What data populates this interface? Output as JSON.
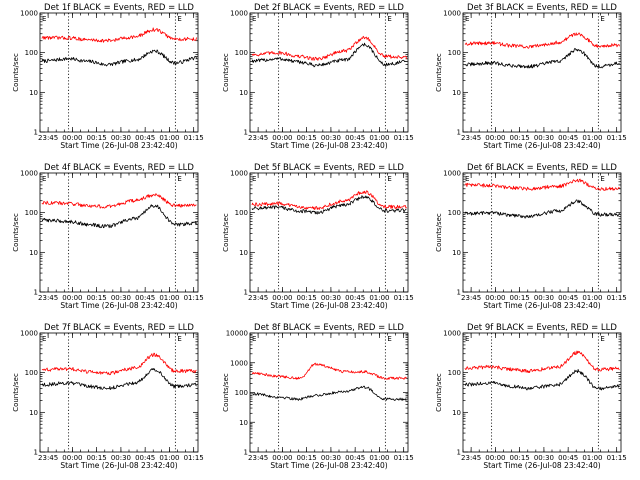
{
  "figure": {
    "title_suffix": " BLACK = Events, RED = LLD",
    "ylabel": "Counts/sec",
    "xlabel": "Start Time (26-Jul-08 23:42:40)",
    "xtick_labels": [
      "23:45",
      "00:00",
      "00:15",
      "00:30",
      "00:45",
      "01:00",
      "01:15"
    ],
    "marker": "E",
    "colors": {
      "events": "#000000",
      "lld": "#ff0000"
    }
  },
  "chart_data": [
    {
      "type": "line",
      "title_prefix": "Det 1f",
      "y_ticks": [
        "1",
        "10",
        "100",
        "1000"
      ],
      "ylim": [
        1,
        1000
      ],
      "xlabel": "Start Time (26-Jul-08 23:42:40)",
      "ylabel": "Counts/sec",
      "xlim_minutes": [
        -2.7,
        95
      ],
      "vlines_minutes": [
        15,
        81
      ],
      "series": [
        {
          "name": "Events",
          "color": "#000000",
          "values": [
            62,
            70,
            60,
            50,
            65,
            110,
            55,
            75
          ]
        },
        {
          "name": "RED = LLD",
          "color": "#ff0000",
          "values": [
            240,
            235,
            210,
            200,
            250,
            380,
            220,
            220
          ]
        }
      ]
    },
    {
      "type": "line",
      "title_prefix": "Det 2f",
      "y_ticks": [
        "1",
        "10",
        "100",
        "1000"
      ],
      "ylim": [
        1,
        1000
      ],
      "xlabel": "Start Time (26-Jul-08 23:42:40)",
      "ylabel": "Counts/sec",
      "xlim_minutes": [
        -2.7,
        95
      ],
      "vlines_minutes": [
        15,
        81
      ],
      "series": [
        {
          "name": "Events",
          "color": "#000000",
          "values": [
            62,
            70,
            58,
            48,
            65,
            160,
            50,
            60
          ]
        },
        {
          "name": "RED = LLD",
          "color": "#ff0000",
          "values": [
            90,
            100,
            80,
            70,
            110,
            240,
            80,
            75
          ]
        }
      ]
    },
    {
      "type": "line",
      "title_prefix": "Det 3f",
      "y_ticks": [
        "1",
        "10",
        "100",
        "1000"
      ],
      "ylim": [
        1,
        1000
      ],
      "xlabel": "Start Time (26-Jul-08 23:42:40)",
      "ylabel": "Counts/sec",
      "xlim_minutes": [
        -2.7,
        95
      ],
      "vlines_minutes": [
        15,
        81
      ],
      "series": [
        {
          "name": "Events",
          "color": "#000000",
          "values": [
            50,
            55,
            47,
            45,
            60,
            120,
            45,
            55
          ]
        },
        {
          "name": "RED = LLD",
          "color": "#ff0000",
          "values": [
            170,
            175,
            150,
            140,
            180,
            300,
            150,
            155
          ]
        }
      ]
    },
    {
      "type": "line",
      "title_prefix": "Det 4f",
      "y_ticks": [
        "1",
        "10",
        "100",
        "1000"
      ],
      "ylim": [
        1,
        1000
      ],
      "xlabel": "Start Time (26-Jul-08 23:42:40)",
      "ylabel": "Counts/sec",
      "xlim_minutes": [
        -2.7,
        95
      ],
      "vlines_minutes": [
        15,
        81
      ],
      "series": [
        {
          "name": "Events",
          "color": "#000000",
          "values": [
            65,
            60,
            50,
            45,
            70,
            150,
            50,
            55
          ]
        },
        {
          "name": "RED = LLD",
          "color": "#ff0000",
          "values": [
            180,
            170,
            150,
            140,
            200,
            280,
            150,
            160
          ]
        }
      ]
    },
    {
      "type": "line",
      "title_prefix": "Det 5f",
      "y_ticks": [
        "1",
        "10",
        "100",
        "1000"
      ],
      "ylim": [
        1,
        1000
      ],
      "xlabel": "Start Time (26-Jul-08 23:42:40)",
      "ylabel": "Counts/sec",
      "xlim_minutes": [
        -2.7,
        95
      ],
      "vlines_minutes": [
        15,
        81
      ],
      "series": [
        {
          "name": "Events",
          "color": "#000000",
          "values": [
            130,
            135,
            110,
            100,
            160,
            250,
            110,
            115
          ]
        },
        {
          "name": "RED = LLD",
          "color": "#ff0000",
          "values": [
            160,
            170,
            140,
            130,
            200,
            340,
            140,
            140
          ]
        }
      ]
    },
    {
      "type": "line",
      "title_prefix": "Det 6f",
      "y_ticks": [
        "1",
        "10",
        "100",
        "1000"
      ],
      "ylim": [
        1,
        1000
      ],
      "xlabel": "Start Time (26-Jul-08 23:42:40)",
      "ylabel": "Counts/sec",
      "xlim_minutes": [
        -2.7,
        95
      ],
      "vlines_minutes": [
        15,
        81
      ],
      "series": [
        {
          "name": "Events",
          "color": "#000000",
          "values": [
            95,
            100,
            85,
            80,
            110,
            190,
            90,
            90
          ]
        },
        {
          "name": "RED = LLD",
          "color": "#ff0000",
          "values": [
            500,
            480,
            420,
            400,
            460,
            650,
            400,
            400
          ]
        }
      ]
    },
    {
      "type": "line",
      "title_prefix": "Det 7f",
      "y_ticks": [
        "1",
        "10",
        "100",
        "1000"
      ],
      "ylim": [
        1,
        1000
      ],
      "xlabel": "Start Time (26-Jul-08 23:42:40)",
      "ylabel": "Counts/sec",
      "xlim_minutes": [
        -2.7,
        95
      ],
      "vlines_minutes": [
        15,
        81
      ],
      "series": [
        {
          "name": "Events",
          "color": "#000000",
          "values": [
            50,
            55,
            45,
            40,
            55,
            120,
            45,
            50
          ]
        },
        {
          "name": "RED = LLD",
          "color": "#ff0000",
          "values": [
            120,
            125,
            105,
            95,
            130,
            280,
            110,
            110
          ]
        }
      ]
    },
    {
      "type": "line",
      "title_prefix": "Det 8f",
      "y_ticks": [
        "1",
        "10",
        "100",
        "1000",
        "10000"
      ],
      "ylim": [
        1,
        10000
      ],
      "xlabel": "Start Time (26-Jul-08 23:42:40)",
      "ylabel": "Counts/sec",
      "xlim_minutes": [
        -2.7,
        95
      ],
      "vlines_minutes": [
        15,
        81
      ],
      "series": [
        {
          "name": "Events",
          "color": "#000000",
          "values": [
            90,
            70,
            60,
            80,
            110,
            150,
            60,
            60
          ]
        },
        {
          "name": "RED = LLD",
          "color": "#ff0000",
          "values": [
            450,
            350,
            300,
            900,
            500,
            500,
            300,
            300
          ]
        }
      ]
    },
    {
      "type": "line",
      "title_prefix": "Det 9f",
      "y_ticks": [
        "1",
        "10",
        "100",
        "1000"
      ],
      "ylim": [
        1,
        1000
      ],
      "xlabel": "Start Time (26-Jul-08 23:42:40)",
      "ylabel": "Counts/sec",
      "xlim_minutes": [
        -2.7,
        95
      ],
      "vlines_minutes": [
        15,
        81
      ],
      "series": [
        {
          "name": "Events",
          "color": "#000000",
          "values": [
            50,
            55,
            45,
            40,
            50,
            110,
            40,
            45
          ]
        },
        {
          "name": "RED = LLD",
          "color": "#ff0000",
          "values": [
            130,
            140,
            120,
            110,
            140,
            320,
            120,
            130
          ]
        }
      ]
    }
  ]
}
